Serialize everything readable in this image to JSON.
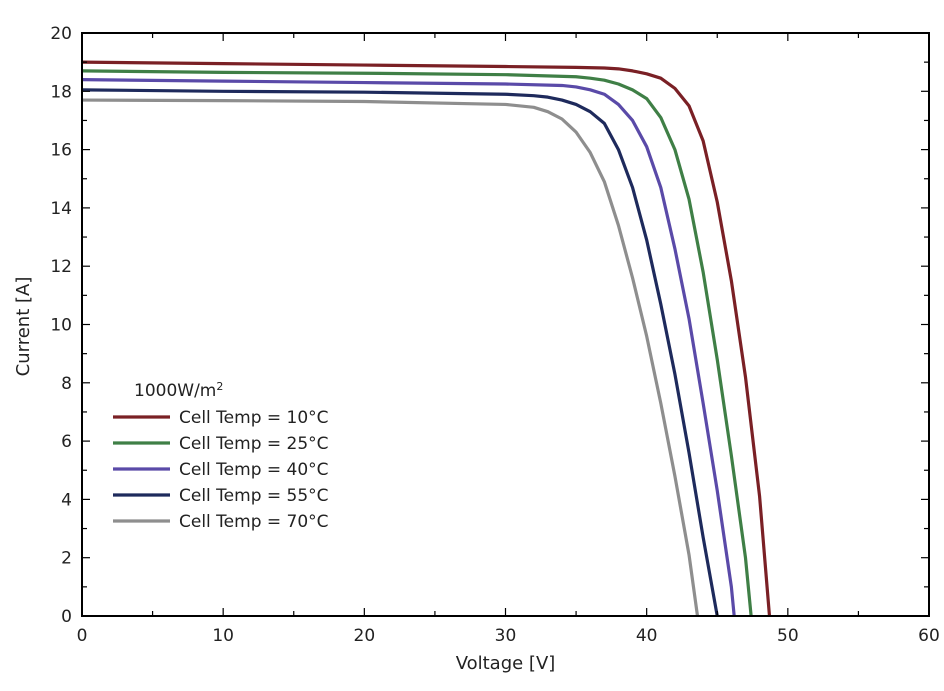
{
  "chart_data": {
    "type": "line",
    "title": "",
    "xlabel": "Voltage [V]",
    "ylabel": "Current [A]",
    "xlim": [
      0,
      60
    ],
    "ylim": [
      0,
      20
    ],
    "xticks": [
      0,
      10,
      20,
      30,
      40,
      50,
      60
    ],
    "yticks": [
      0,
      2,
      4,
      6,
      8,
      10,
      12,
      14,
      16,
      18,
      20
    ],
    "grid": false,
    "legend_location": "lower-left",
    "legend_title_main": "1000W/m",
    "legend_title_sup": "2",
    "series": [
      {
        "name": "Cell Temp = 10°C",
        "color": "#7a2025",
        "x": [
          0,
          10,
          20,
          30,
          35,
          37,
          38,
          39,
          40,
          41,
          42,
          43,
          44,
          45,
          46,
          47,
          48,
          48.7
        ],
        "y": [
          19.0,
          18.95,
          18.9,
          18.85,
          18.82,
          18.8,
          18.77,
          18.7,
          18.6,
          18.45,
          18.1,
          17.5,
          16.3,
          14.2,
          11.5,
          8.2,
          4.1,
          0
        ]
      },
      {
        "name": "Cell Temp = 25°C",
        "color": "#3f7f46",
        "x": [
          0,
          10,
          20,
          30,
          35,
          36,
          37,
          38,
          39,
          40,
          41,
          42,
          43,
          44,
          45,
          46,
          47,
          47.4
        ],
        "y": [
          18.7,
          18.65,
          18.62,
          18.57,
          18.5,
          18.45,
          18.38,
          18.25,
          18.05,
          17.75,
          17.1,
          16.0,
          14.3,
          11.8,
          8.8,
          5.5,
          2.0,
          0
        ]
      },
      {
        "name": "Cell Temp = 40°C",
        "color": "#5a4aa8",
        "x": [
          0,
          10,
          20,
          30,
          34,
          35,
          36,
          37,
          38,
          39,
          40,
          41,
          42,
          43,
          44,
          45,
          46,
          46.2
        ],
        "y": [
          18.4,
          18.35,
          18.3,
          18.25,
          18.2,
          18.15,
          18.05,
          17.9,
          17.55,
          17.0,
          16.1,
          14.7,
          12.6,
          10.2,
          7.3,
          4.3,
          1.0,
          0
        ]
      },
      {
        "name": "Cell Temp = 55°C",
        "color": "#1e2a5c",
        "x": [
          0,
          10,
          20,
          30,
          32,
          33,
          34,
          35,
          36,
          37,
          38,
          39,
          40,
          41,
          42,
          43,
          44,
          45
        ],
        "y": [
          18.05,
          18.0,
          17.97,
          17.9,
          17.85,
          17.8,
          17.7,
          17.55,
          17.3,
          16.9,
          16.0,
          14.7,
          12.9,
          10.7,
          8.3,
          5.6,
          2.7,
          0
        ]
      },
      {
        "name": "Cell Temp = 70°C",
        "color": "#8e8e8e",
        "x": [
          0,
          10,
          20,
          30,
          32,
          33,
          34,
          35,
          36,
          37,
          38,
          39,
          40,
          41,
          42,
          43,
          43.6
        ],
        "y": [
          17.7,
          17.68,
          17.65,
          17.55,
          17.45,
          17.3,
          17.05,
          16.6,
          15.9,
          14.9,
          13.4,
          11.6,
          9.6,
          7.3,
          4.8,
          2.1,
          0
        ]
      }
    ]
  }
}
